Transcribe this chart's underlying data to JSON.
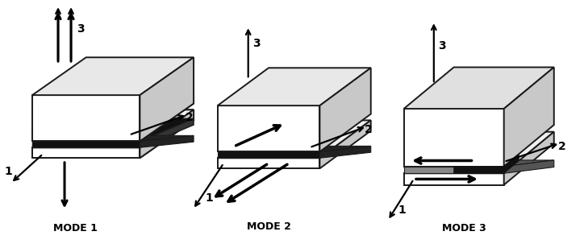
{
  "background_color": "#ffffff",
  "edge_color": "#1a1a1a",
  "top_face_color": "#f0f0f0",
  "side_face_color": "#c8c8c8",
  "front_face_color": "#ffffff",
  "crack_color": "#111111",
  "mode_labels": [
    "MODE 1",
    "MODE 2",
    "MODE 3"
  ],
  "figsize": [
    7.24,
    3.08
  ],
  "dpi": 100
}
